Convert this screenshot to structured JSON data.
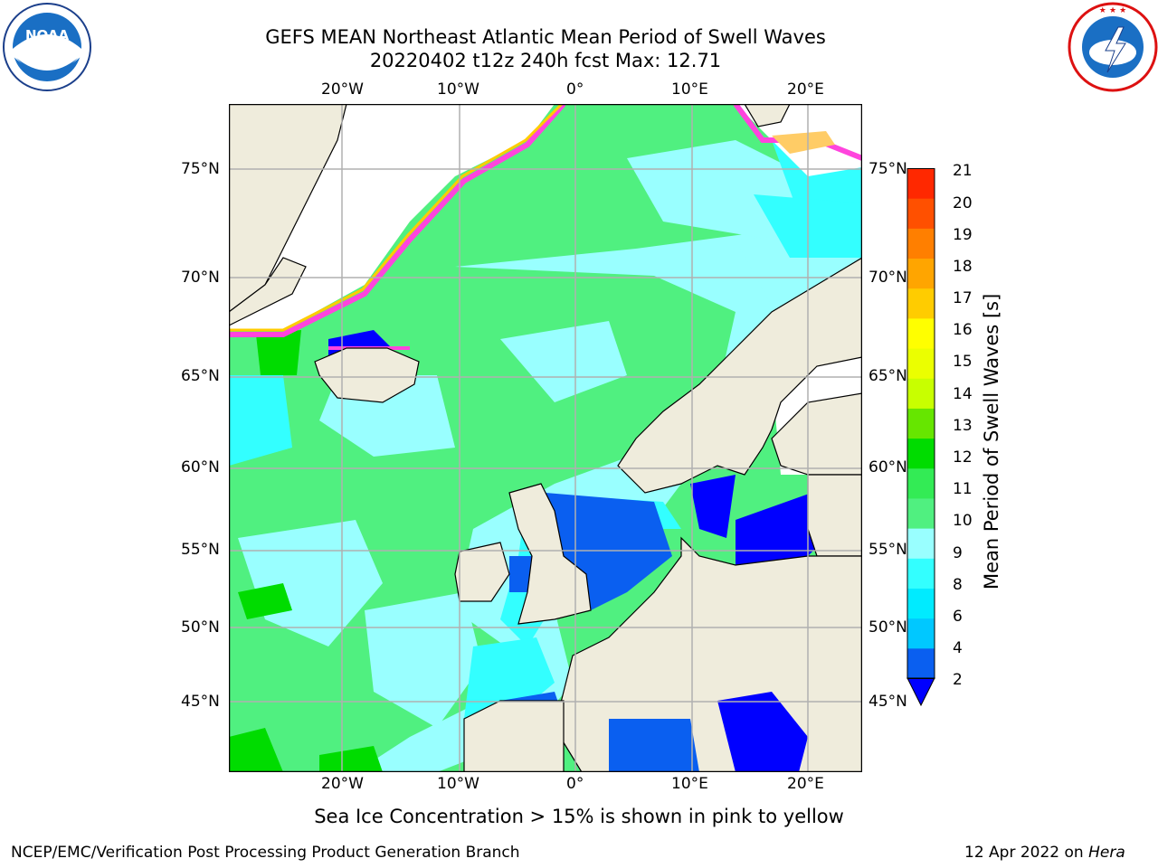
{
  "header": {
    "title_line1": "GEFS MEAN Northeast Atlantic Mean Period of Swell Waves",
    "title_line2": "20220402 t12z 240h fcst   Max: 12.71"
  },
  "logos": {
    "left_name": "noaa-logo",
    "left_text": "NOAA",
    "left_ring_text": "NATIONAL OCEANIC AND ATMOSPHERIC ADMINISTRATION · U.S. DEPARTMENT OF COMMERCE",
    "right_name": "nws-logo",
    "right_ring_text": "NATIONAL WEATHER SERVICE"
  },
  "map": {
    "lon_ticks": [
      "20°W",
      "10°W",
      "0°",
      "10°E",
      "20°E"
    ],
    "lat_ticks_left": [
      "75°N",
      "70°N",
      "65°N",
      "60°N",
      "55°N",
      "50°N",
      "45°N"
    ],
    "lat_ticks_right": [
      "75°N",
      "70°N",
      "65°N",
      "60°N",
      "55°N",
      "50°N",
      "45°N"
    ],
    "colors": {
      "land": "#efecdc",
      "ice_white": "#ffffff",
      "grid": "#b0b0b0",
      "coast": "#000000"
    }
  },
  "colorbar": {
    "title": "Mean Period of Swell Waves [s]",
    "labels": [
      "21",
      "20",
      "19",
      "18",
      "17",
      "16",
      "15",
      "14",
      "13",
      "12",
      "11",
      "10",
      "9",
      "8",
      "6",
      "4",
      "2"
    ],
    "colors_bottom_to_top": [
      "#0a5ff0",
      "#00c8ff",
      "#00ebff",
      "#33ffff",
      "#99ffff",
      "#50f080",
      "#33eb55",
      "#00dc00",
      "#66e600",
      "#c8ff00",
      "#ebff00",
      "#ffff00",
      "#ffcc00",
      "#ffa500",
      "#ff7f00",
      "#ff5000",
      "#ff2800",
      "#ff0000"
    ],
    "extend_color": "#0000ff"
  },
  "caption": "Sea Ice Concentration > 15% is shown in pink to yellow",
  "footer": {
    "left": "NCEP/EMC/Verification Post Processing Product Generation Branch",
    "right_prefix": "12 Apr 2022 on ",
    "right_italic": "Hera"
  }
}
